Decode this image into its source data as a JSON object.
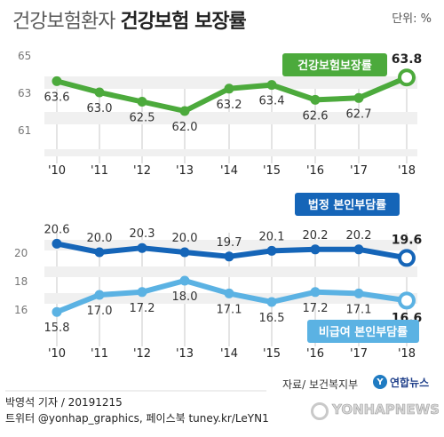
{
  "title_part1": "건강보험환자",
  "title_part2": "건강보험 보장률",
  "unit": "단위: %",
  "chart_data": [
    {
      "type": "line",
      "categories": [
        "'10",
        "'11",
        "'12",
        "'13",
        "'14",
        "'15",
        "'16",
        "'17",
        "'18"
      ],
      "yticks": [
        65,
        63,
        61
      ],
      "ylim": [
        60.5,
        65
      ],
      "series": [
        {
          "name": "건강보험보장률",
          "values": [
            63.6,
            63.0,
            62.5,
            62.0,
            63.2,
            63.4,
            62.6,
            62.7,
            63.8
          ],
          "labels": [
            "63.6",
            "63.0",
            "62.5",
            "62.0",
            "63.2",
            "63.4",
            "62.6",
            "62.7",
            "63.8"
          ],
          "color": "#4caa3c"
        }
      ]
    },
    {
      "type": "line",
      "categories": [
        "'10",
        "'11",
        "'12",
        "'13",
        "'14",
        "'15",
        "'16",
        "'17",
        "'18"
      ],
      "yticks": [
        20,
        18,
        16
      ],
      "ylim": [
        14.6,
        21.2
      ],
      "series": [
        {
          "name": "법정 본인부담률",
          "values": [
            20.6,
            20.0,
            20.3,
            20.0,
            19.7,
            20.1,
            20.2,
            20.2,
            19.6
          ],
          "labels": [
            "20.6",
            "20.0",
            "20.3",
            "20.0",
            "19.7",
            "20.1",
            "20.2",
            "20.2",
            "19.6"
          ],
          "color": "#1565b8"
        },
        {
          "name": "비급여 본인부담률",
          "values": [
            15.8,
            17.0,
            17.2,
            18.0,
            17.1,
            16.5,
            17.2,
            17.1,
            16.6
          ],
          "labels": [
            "15.8",
            "17.0",
            "17.2",
            "18.0",
            "17.1",
            "16.5",
            "17.2",
            "17.1",
            "16.6"
          ],
          "color": "#5bb2e3"
        }
      ]
    }
  ],
  "footer": {
    "line1": "박영석 기자 /  20191215",
    "line2": "트위터 @yonhap_graphics, 페이스북 tuney.kr/LeYN1"
  },
  "source": "자료/ 보건복지부",
  "logo_text": "연합뉴스",
  "watermark": "YONHAPNEWS"
}
